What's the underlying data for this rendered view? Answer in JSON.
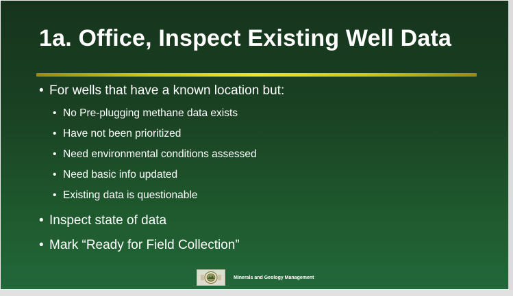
{
  "slide": {
    "title": "1a. Office, Inspect Existing Well Data",
    "bullet_char": "•",
    "bullets": [
      {
        "level": 1,
        "text": "For wells that have a known location but:"
      },
      {
        "level": 2,
        "text": "No Pre-plugging methane data exists"
      },
      {
        "level": 2,
        "text": "Have not been prioritized"
      },
      {
        "level": 2,
        "text": "Need environmental conditions assessed"
      },
      {
        "level": 2,
        "text": "Need basic info updated"
      },
      {
        "level": 2,
        "text": "Existing data is questionable"
      },
      {
        "level": 1,
        "text": "Inspect state of data"
      },
      {
        "level": 1,
        "text": "Mark “Ready for Field Collection”"
      }
    ],
    "footer": {
      "logo_icon": "agency-seal-icon",
      "text": "Minerals and Geology Management"
    }
  },
  "colors": {
    "background_top": "#16341c",
    "background_bottom": "#22683a",
    "divider": "#f2df2a",
    "text": "#ffffff"
  }
}
